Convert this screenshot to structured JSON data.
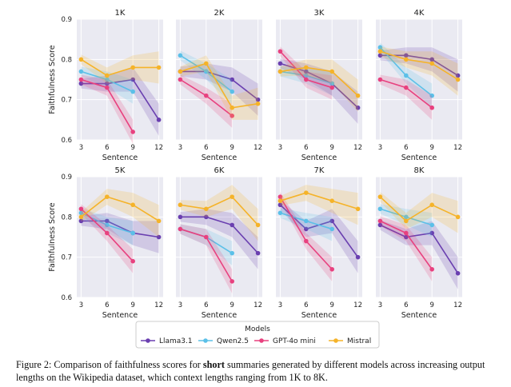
{
  "chart_data": {
    "type": "line",
    "shared_x": [
      3,
      6,
      9,
      12
    ],
    "xlabel": "Sentence",
    "ylabel": "Faithfulness Score",
    "ylim": [
      0.6,
      0.9
    ],
    "yticks": [
      "0.6",
      "0.7",
      "0.8",
      "0.9"
    ],
    "xticks": [
      "3",
      "6",
      "9",
      "12"
    ],
    "legend_title": "Models",
    "legend_placement": "bottom-center",
    "series_colors": {
      "Llama3.1": "#6a3fb0",
      "Qwen2.5": "#5bc0e8",
      "GPT-4o mini": "#e8417f",
      "Mistral": "#f5b329"
    },
    "series_names": [
      "Llama3.1",
      "Qwen2.5",
      "GPT-4o mini",
      "Mistral"
    ],
    "panels": [
      {
        "title": "1K",
        "series": [
          {
            "name": "Llama3.1",
            "values": [
              0.74,
              0.74,
              0.75,
              0.65
            ]
          },
          {
            "name": "Qwen2.5",
            "values": [
              0.77,
              0.75,
              0.72,
              null
            ]
          },
          {
            "name": "GPT-4o mini",
            "values": [
              0.75,
              0.73,
              0.62,
              null
            ]
          },
          {
            "name": "Mistral",
            "values": [
              0.8,
              0.76,
              0.78,
              0.78
            ]
          }
        ]
      },
      {
        "title": "2K",
        "series": [
          {
            "name": "Llama3.1",
            "values": [
              0.77,
              0.77,
              0.75,
              0.7
            ]
          },
          {
            "name": "Qwen2.5",
            "values": [
              0.81,
              0.77,
              0.72,
              null
            ]
          },
          {
            "name": "GPT-4o mini",
            "values": [
              0.75,
              0.71,
              0.66,
              null
            ]
          },
          {
            "name": "Mistral",
            "values": [
              0.77,
              0.79,
              0.68,
              0.69
            ]
          }
        ]
      },
      {
        "title": "3K",
        "series": [
          {
            "name": "Llama3.1",
            "values": [
              0.79,
              0.77,
              0.74,
              0.68
            ]
          },
          {
            "name": "Qwen2.5",
            "values": [
              0.77,
              0.76,
              0.74,
              null
            ]
          },
          {
            "name": "GPT-4o mini",
            "values": [
              0.82,
              0.75,
              0.73,
              null
            ]
          },
          {
            "name": "Mistral",
            "values": [
              0.77,
              0.78,
              0.77,
              0.71
            ]
          }
        ]
      },
      {
        "title": "4K",
        "series": [
          {
            "name": "Llama3.1",
            "values": [
              0.81,
              0.81,
              0.8,
              0.76
            ]
          },
          {
            "name": "Qwen2.5",
            "values": [
              0.83,
              0.76,
              0.71,
              null
            ]
          },
          {
            "name": "GPT-4o mini",
            "values": [
              0.75,
              0.73,
              0.68,
              null
            ]
          },
          {
            "name": "Mistral",
            "values": [
              0.82,
              0.8,
              0.79,
              0.75
            ]
          }
        ]
      },
      {
        "title": "5K",
        "series": [
          {
            "name": "Llama3.1",
            "values": [
              0.79,
              0.79,
              0.76,
              0.75
            ]
          },
          {
            "name": "Qwen2.5",
            "values": [
              0.81,
              0.78,
              0.76,
              null
            ]
          },
          {
            "name": "GPT-4o mini",
            "values": [
              0.82,
              0.76,
              0.69,
              null
            ]
          },
          {
            "name": "Mistral",
            "values": [
              0.8,
              0.85,
              0.83,
              0.79
            ]
          }
        ]
      },
      {
        "title": "6K",
        "series": [
          {
            "name": "Llama3.1",
            "values": [
              0.8,
              0.8,
              0.78,
              0.71
            ]
          },
          {
            "name": "Qwen2.5",
            "values": [
              0.77,
              0.75,
              0.71,
              null
            ]
          },
          {
            "name": "GPT-4o mini",
            "values": [
              0.77,
              0.75,
              0.64,
              null
            ]
          },
          {
            "name": "Mistral",
            "values": [
              0.83,
              0.82,
              0.85,
              0.78
            ]
          }
        ]
      },
      {
        "title": "7K",
        "series": [
          {
            "name": "Llama3.1",
            "values": [
              0.83,
              0.77,
              0.79,
              0.7
            ]
          },
          {
            "name": "Qwen2.5",
            "values": [
              0.81,
              0.79,
              0.77,
              null
            ]
          },
          {
            "name": "GPT-4o mini",
            "values": [
              0.85,
              0.74,
              0.67,
              null
            ]
          },
          {
            "name": "Mistral",
            "values": [
              0.84,
              0.86,
              0.84,
              0.82
            ]
          }
        ]
      },
      {
        "title": "8K",
        "series": [
          {
            "name": "Llama3.1",
            "values": [
              0.78,
              0.75,
              0.76,
              0.66
            ]
          },
          {
            "name": "Qwen2.5",
            "values": [
              0.82,
              0.8,
              0.78,
              null
            ]
          },
          {
            "name": "GPT-4o mini",
            "values": [
              0.79,
              0.76,
              0.67,
              null
            ]
          },
          {
            "name": "Mistral",
            "values": [
              0.85,
              0.79,
              0.83,
              0.8
            ]
          }
        ]
      }
    ]
  },
  "caption": {
    "prefix": "Figure 2: Comparison of faithfulness scores for ",
    "bold": "short",
    "suffix": " summaries generated by different models across increasing output lengths on the Wikipedia dataset, which context lengths ranging from 1K to 8K."
  }
}
